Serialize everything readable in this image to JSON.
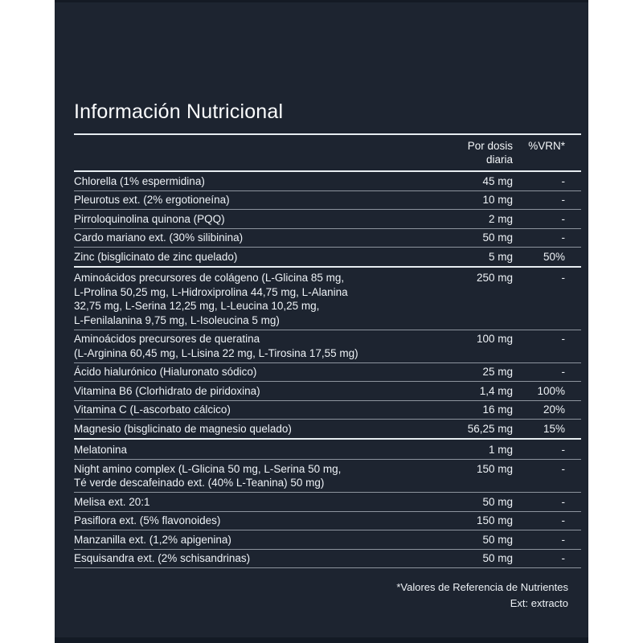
{
  "title": "Información Nutricional",
  "colors": {
    "panel_bg": "#1d2430",
    "text": "#f3f6f8",
    "rule_strong": "#e7edf1",
    "rule_thin": "#9aa3ad",
    "page_bg": "#ffffff"
  },
  "table": {
    "columns": {
      "dose": "Por dosis diaria",
      "vrn": "%VRN*"
    },
    "groups": [
      {
        "rows": [
          {
            "name": "Chlorella (1% espermidina)",
            "dose": "45 mg",
            "vrn": "-"
          },
          {
            "name": "Pleurotus ext. (2% ergotioneína)",
            "dose": "10 mg",
            "vrn": "-"
          },
          {
            "name": "Pirroloquinolina quinona (PQQ)",
            "dose": "2 mg",
            "vrn": "-"
          },
          {
            "name": "Cardo mariano ext. (30% silibinina)",
            "dose": "50 mg",
            "vrn": "-"
          },
          {
            "name": "Zinc (bisglicinato de zinc quelado)",
            "dose": "5 mg",
            "vrn": "50%"
          }
        ]
      },
      {
        "rows": [
          {
            "name": [
              "Aminoácidos precursores de colágeno (L-Glicina 85 mg,",
              "L-Prolina 50,25 mg, L-Hidroxiprolina 44,75 mg, L-Alanina",
              "32,75 mg, L-Serina 12,25 mg, L-Leucina 10,25 mg,",
              "L-Fenilalanina 9,75 mg, L-Isoleucina 5 mg)"
            ],
            "dose": "250 mg",
            "vrn": "-"
          },
          {
            "name": [
              "Aminoácidos precursores de queratina",
              "(L-Arginina 60,45 mg, L-Lisina 22 mg, L-Tirosina 17,55 mg)"
            ],
            "dose": "100 mg",
            "vrn": "-"
          },
          {
            "name": "Ácido hialurónico (Hialuronato sódico)",
            "dose": "25 mg",
            "vrn": "-"
          },
          {
            "name": "Vitamina B6 (Clorhidrato de piridoxina)",
            "dose": "1,4 mg",
            "vrn": "100%"
          },
          {
            "name": "Vitamina C (L-ascorbato cálcico)",
            "dose": "16 mg",
            "vrn": "20%"
          },
          {
            "name": "Magnesio (bisglicinato de magnesio quelado)",
            "dose": "56,25 mg",
            "vrn": "15%"
          }
        ]
      },
      {
        "rows": [
          {
            "name": "Melatonina",
            "dose": "1 mg",
            "vrn": "-"
          },
          {
            "name": [
              "Night amino complex (L-Glicina 50 mg, L-Serina 50 mg,",
              "Té verde descafeinado ext. (40% L-Teanina) 50 mg)"
            ],
            "dose": "150 mg",
            "vrn": "-"
          },
          {
            "name": "Melisa ext. 20:1",
            "dose": "50 mg",
            "vrn": "-"
          },
          {
            "name": "Pasiflora ext. (5% flavonoides)",
            "dose": "150 mg",
            "vrn": "-"
          },
          {
            "name": "Manzanilla ext. (1,2% apigenina)",
            "dose": "50 mg",
            "vrn": "-"
          },
          {
            "name": "Esquisandra ext. (2% schisandrinas)",
            "dose": "50 mg",
            "vrn": "-"
          }
        ]
      }
    ]
  },
  "footnotes": [
    "*Valores de Referencia de Nutrientes",
    "Ext: extracto"
  ]
}
